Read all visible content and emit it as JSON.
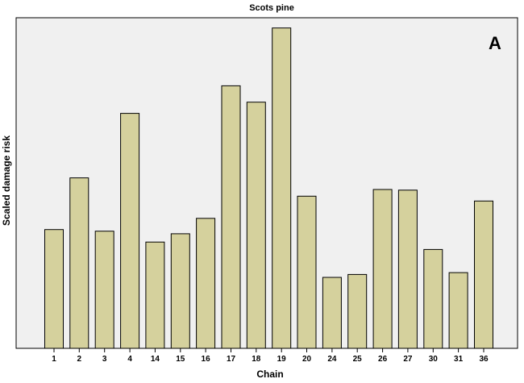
{
  "chart_data": {
    "type": "bar",
    "title": "Scots pine",
    "panel_label": "A",
    "xlabel": "Chain",
    "ylabel": "Scaled damage risk",
    "categories": [
      "1",
      "2",
      "3",
      "4",
      "14",
      "15",
      "16",
      "17",
      "18",
      "19",
      "20",
      "24",
      "25",
      "26",
      "27",
      "30",
      "31",
      "36"
    ],
    "values": [
      0.37,
      0.531,
      0.365,
      0.732,
      0.331,
      0.357,
      0.405,
      0.818,
      0.767,
      0.998,
      0.474,
      0.221,
      0.23,
      0.495,
      0.493,
      0.308,
      0.236,
      0.459
    ],
    "ylim": [
      0,
      1.03
    ],
    "y_ticks_shown": false,
    "grid": false,
    "legend": "none",
    "colors": {
      "plot_background": "#f0f0f0",
      "bar_fill": "#d5d19d",
      "bar_stroke": "#000000"
    }
  }
}
